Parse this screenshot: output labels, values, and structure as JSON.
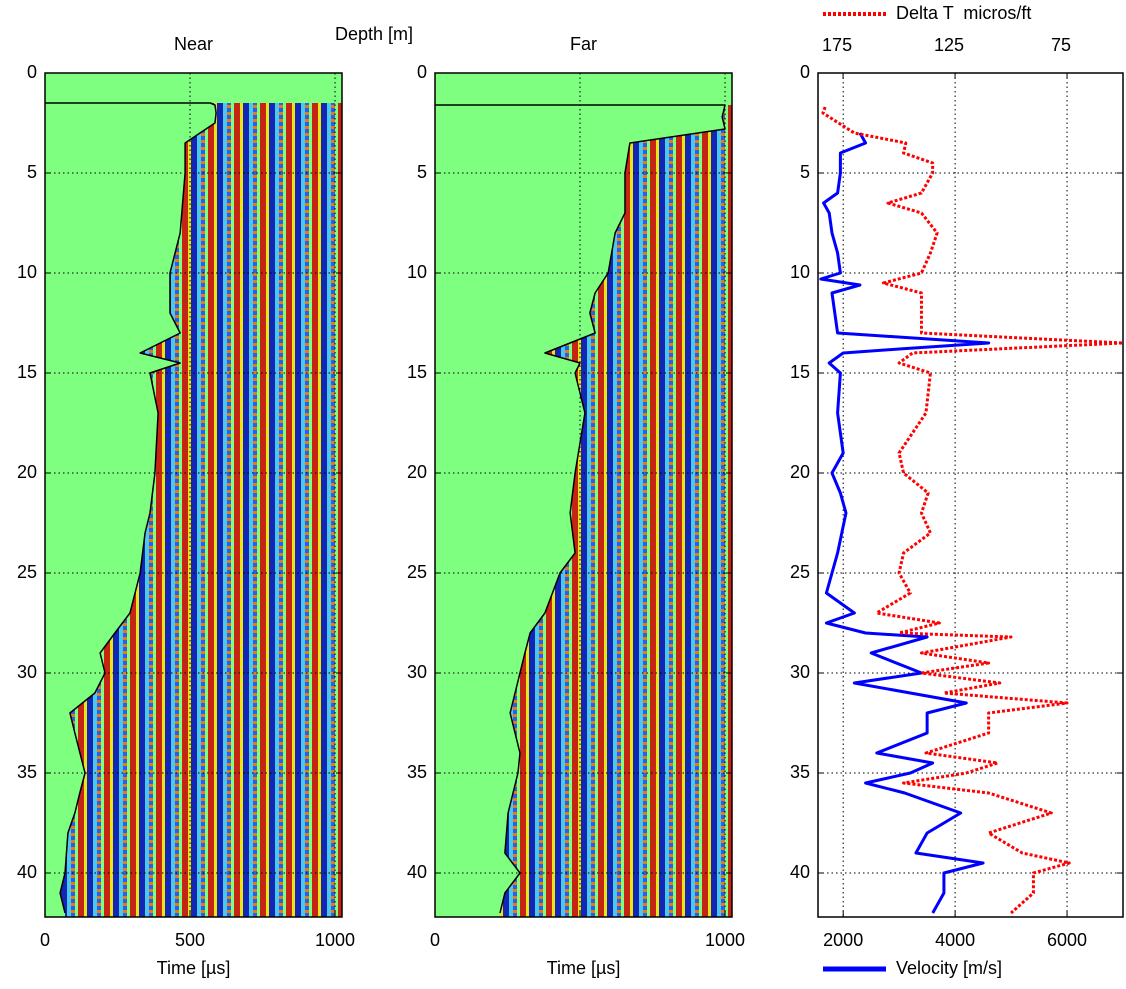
{
  "chart_data": [
    {
      "type": "seismic",
      "title": "Near",
      "ylabel": "Depth [m]",
      "xlabel": "Time [µs]",
      "xlim": [
        0,
        1024
      ],
      "xticks": [
        0,
        500,
        1000
      ],
      "ylim": [
        0,
        42.2
      ],
      "yticks": [
        0,
        5,
        10,
        15,
        20,
        25,
        30,
        35,
        40
      ],
      "grid": true,
      "series": [
        {
          "color": "#000000",
          "depth": [
            1.5,
            1.5,
            1.6,
            2.0,
            2.5,
            3.5,
            5,
            8,
            10,
            12,
            13,
            14,
            14.5,
            15,
            17,
            20,
            22,
            23,
            25,
            27,
            28,
            29,
            30,
            31,
            32,
            33,
            35,
            36,
            37,
            38,
            40,
            41,
            42
          ],
          "values": [
            0,
            570,
            586,
            590,
            586,
            483,
            483,
            466,
            431,
            431,
            466,
            328,
            466,
            362,
            390,
            379,
            362,
            345,
            328,
            293,
            241,
            190,
            207,
            172,
            86,
            103,
            138,
            120,
            103,
            79,
            69,
            52,
            69
          ]
        }
      ]
    },
    {
      "type": "seismic",
      "title": "Far",
      "xlabel": "Time [µs]",
      "xlim": [
        0,
        1024
      ],
      "xticks": [
        0,
        {
          "value": 500,
          "label": null
        },
        1000
      ],
      "ylim": [
        0,
        42.2
      ],
      "yticks": [
        0,
        5,
        10,
        15,
        20,
        25,
        30,
        35,
        40
      ],
      "grid": true,
      "series": [
        {
          "color": "#000000",
          "depth": [
            1.6,
            1.6,
            2.2,
            2.8,
            3.5,
            5,
            7,
            8,
            10,
            11,
            12,
            13,
            14,
            14.5,
            15,
            17,
            20,
            22,
            24,
            25,
            27,
            28,
            29,
            30,
            31,
            32,
            34,
            35,
            37,
            39,
            40,
            41,
            42
          ],
          "values": [
            0,
            1000,
            990,
            1000,
            672,
            655,
            655,
            621,
            597,
            552,
            534,
            552,
            379,
            500,
            483,
            517,
            483,
            466,
            483,
            431,
            379,
            328,
            310,
            293,
            276,
            259,
            293,
            286,
            252,
            241,
            293,
            241,
            224
          ]
        }
      ]
    },
    {
      "type": "log",
      "xlim": [
        1550,
        7000
      ],
      "xticks": [
        2000,
        4000,
        6000
      ],
      "x2lim": [
        186.2,
        50
      ],
      "x2ticks": [
        175,
        125,
        75
      ],
      "ylim": [
        0,
        42.2
      ],
      "yticks": [
        0,
        5,
        10,
        15,
        20,
        25,
        30,
        35,
        40
      ],
      "grid": true,
      "series": [
        {
          "name": "Velocity [m/s]",
          "color": "#0000ff",
          "depth": [
            3.0,
            3.5,
            4,
            5,
            6,
            6.5,
            7,
            8,
            9,
            10,
            10.3,
            10.6,
            11,
            12,
            13,
            13.5,
            13.8,
            14,
            14.5,
            15,
            17,
            19,
            20,
            21,
            22,
            24,
            25,
            26,
            27,
            27.5,
            28,
            28.2,
            29,
            30,
            30.5,
            31.5,
            32,
            33,
            34,
            34.5,
            35,
            35.5,
            36,
            37,
            38,
            39,
            39.5,
            40,
            41,
            42
          ],
          "values": [
            2300,
            2400,
            1950,
            1950,
            1900,
            1650,
            1750,
            1800,
            1900,
            1950,
            1600,
            2300,
            1800,
            1850,
            1900,
            4600,
            3000,
            2000,
            1750,
            1950,
            1900,
            2000,
            1800,
            1950,
            2050,
            1900,
            1800,
            1700,
            2200,
            1700,
            2400,
            3500,
            2500,
            3400,
            2200,
            4200,
            3500,
            3500,
            2600,
            3600,
            3200,
            2400,
            3100,
            4100,
            3500,
            3300,
            4500,
            3800,
            3800,
            3600
          ]
        },
        {
          "name": "Delta T  micros/ft",
          "color": "#ff0000",
          "axis": "x2",
          "dashed": true,
          "depth": [
            1.7,
            2,
            3,
            3.5,
            4,
            4.5,
            5,
            6,
            6.5,
            7,
            8,
            9,
            10,
            10.5,
            11,
            12,
            13,
            13.5,
            14,
            14.5,
            15,
            17,
            19,
            20,
            21,
            22,
            23,
            24,
            25,
            26,
            27,
            27.5,
            28,
            28.2,
            29,
            29.5,
            30,
            30.5,
            31,
            31.5,
            32,
            33,
            34,
            34.5,
            35,
            35.5,
            36,
            37,
            38,
            39,
            39.5,
            40,
            41,
            42
          ],
          "values": [
            183,
            184,
            170,
            147,
            148,
            135,
            135,
            140,
            155,
            140,
            133,
            136,
            140,
            157,
            140,
            140,
            140,
            50,
            144,
            150,
            136,
            138,
            150,
            148,
            137,
            140,
            136,
            148,
            150,
            145,
            160,
            132,
            150,
            100,
            140,
            110,
            140,
            105,
            130,
            75,
            110,
            110,
            138,
            106,
            120,
            148,
            110,
            82,
            110,
            95,
            74,
            90,
            90,
            100
          ]
        }
      ]
    }
  ]
}
